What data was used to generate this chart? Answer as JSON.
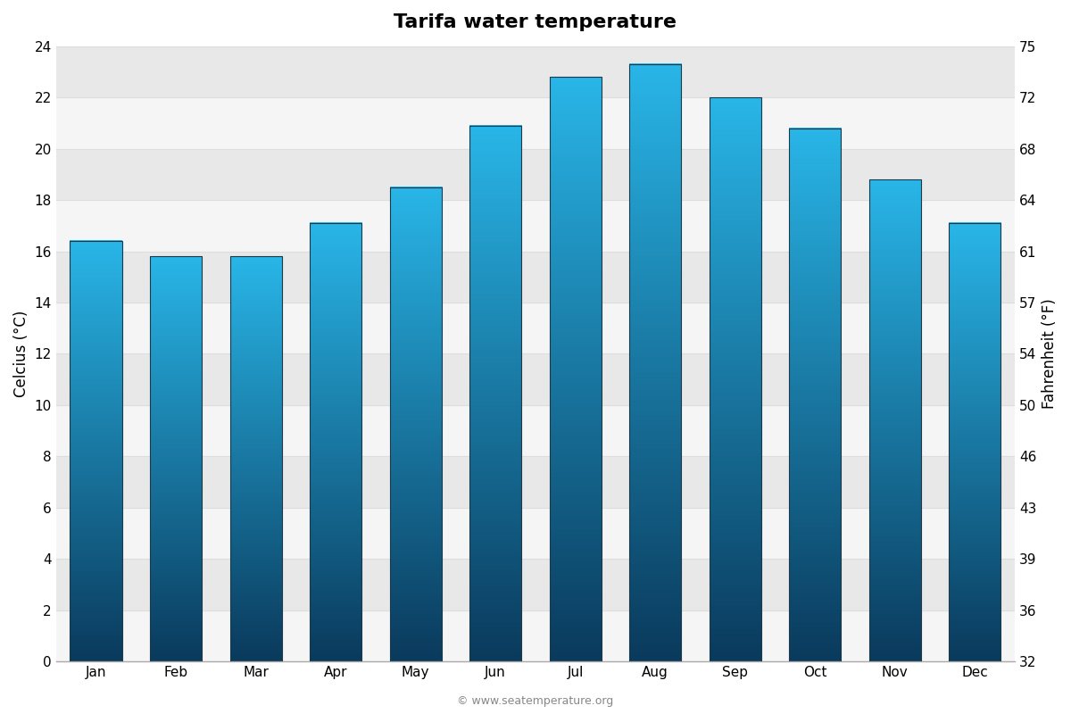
{
  "title": "Tarifa water temperature",
  "months": [
    "Jan",
    "Feb",
    "Mar",
    "Apr",
    "May",
    "Jun",
    "Jul",
    "Aug",
    "Sep",
    "Oct",
    "Nov",
    "Dec"
  ],
  "celsius_values": [
    16.4,
    15.8,
    15.8,
    17.1,
    18.5,
    20.9,
    22.8,
    23.3,
    22.0,
    20.8,
    18.8,
    17.1
  ],
  "ylabel_left": "Celcius (°C)",
  "ylabel_right": "Fahrenheit (°F)",
  "ylim_left": [
    0,
    24
  ],
  "yticks_left": [
    0,
    2,
    4,
    6,
    8,
    10,
    12,
    14,
    16,
    18,
    20,
    22,
    24
  ],
  "yticks_right_vals": [
    32,
    36,
    39,
    43,
    46,
    50,
    54,
    57,
    61,
    64,
    68,
    72,
    75
  ],
  "background_color": "#ffffff",
  "plot_bg_color": "#ffffff",
  "bar_color_top": "#29b6e8",
  "bar_color_bottom": "#0a3a5c",
  "band_color_light": "#f5f5f5",
  "band_color_dark": "#e8e8e8",
  "grid_color": "#dddddd",
  "watermark": "© www.seatemperature.org",
  "title_fontsize": 16,
  "axis_label_fontsize": 12,
  "tick_fontsize": 11
}
